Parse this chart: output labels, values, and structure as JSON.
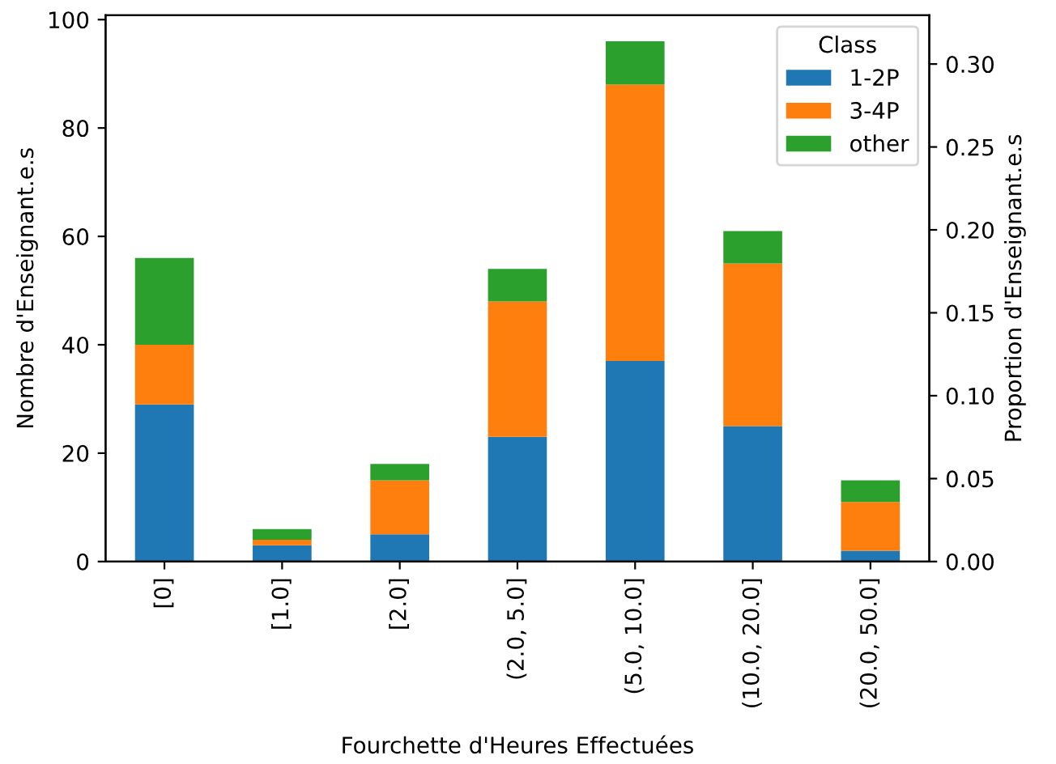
{
  "chart_data": {
    "type": "bar",
    "stacked": true,
    "categories": [
      "[0]",
      "[1.0]",
      "[2.0]",
      "(2.0, 5.0]",
      "(5.0, 10.0]",
      "(10.0, 20.0]",
      "(20.0, 50.0]"
    ],
    "series": [
      {
        "name": "1-2P",
        "color": "#1f77b4",
        "values": [
          29,
          3,
          5,
          23,
          37,
          25,
          2
        ]
      },
      {
        "name": "3-4P",
        "color": "#ff7f0e",
        "values": [
          11,
          1,
          10,
          25,
          51,
          30,
          9
        ]
      },
      {
        "name": "other",
        "color": "#2ca02c",
        "values": [
          16,
          2,
          3,
          6,
          8,
          6,
          4
        ]
      }
    ],
    "xlabel": "Fourchette d'Heures Effectuées",
    "ylabel": "Nombre d'Enseignant.e.s",
    "y2label": "Proportion d'Enseignant.e.s",
    "legend_title": "Class",
    "legend": "top right",
    "ylim": [
      0,
      100.8
    ],
    "yticks": [
      0,
      20,
      40,
      60,
      80,
      100
    ],
    "y2lim": [
      0,
      0.3294
    ],
    "y2ticks": [
      {
        "value": 0,
        "label": "0.00"
      },
      {
        "value": 0.05,
        "label": "0.05"
      },
      {
        "value": 0.1,
        "label": "0.10"
      },
      {
        "value": 0.15,
        "label": "0.15"
      },
      {
        "value": 0.2,
        "label": "0.20"
      },
      {
        "value": 0.25,
        "label": "0.25"
      },
      {
        "value": 0.3,
        "label": "0.30"
      }
    ],
    "grid": false
  }
}
